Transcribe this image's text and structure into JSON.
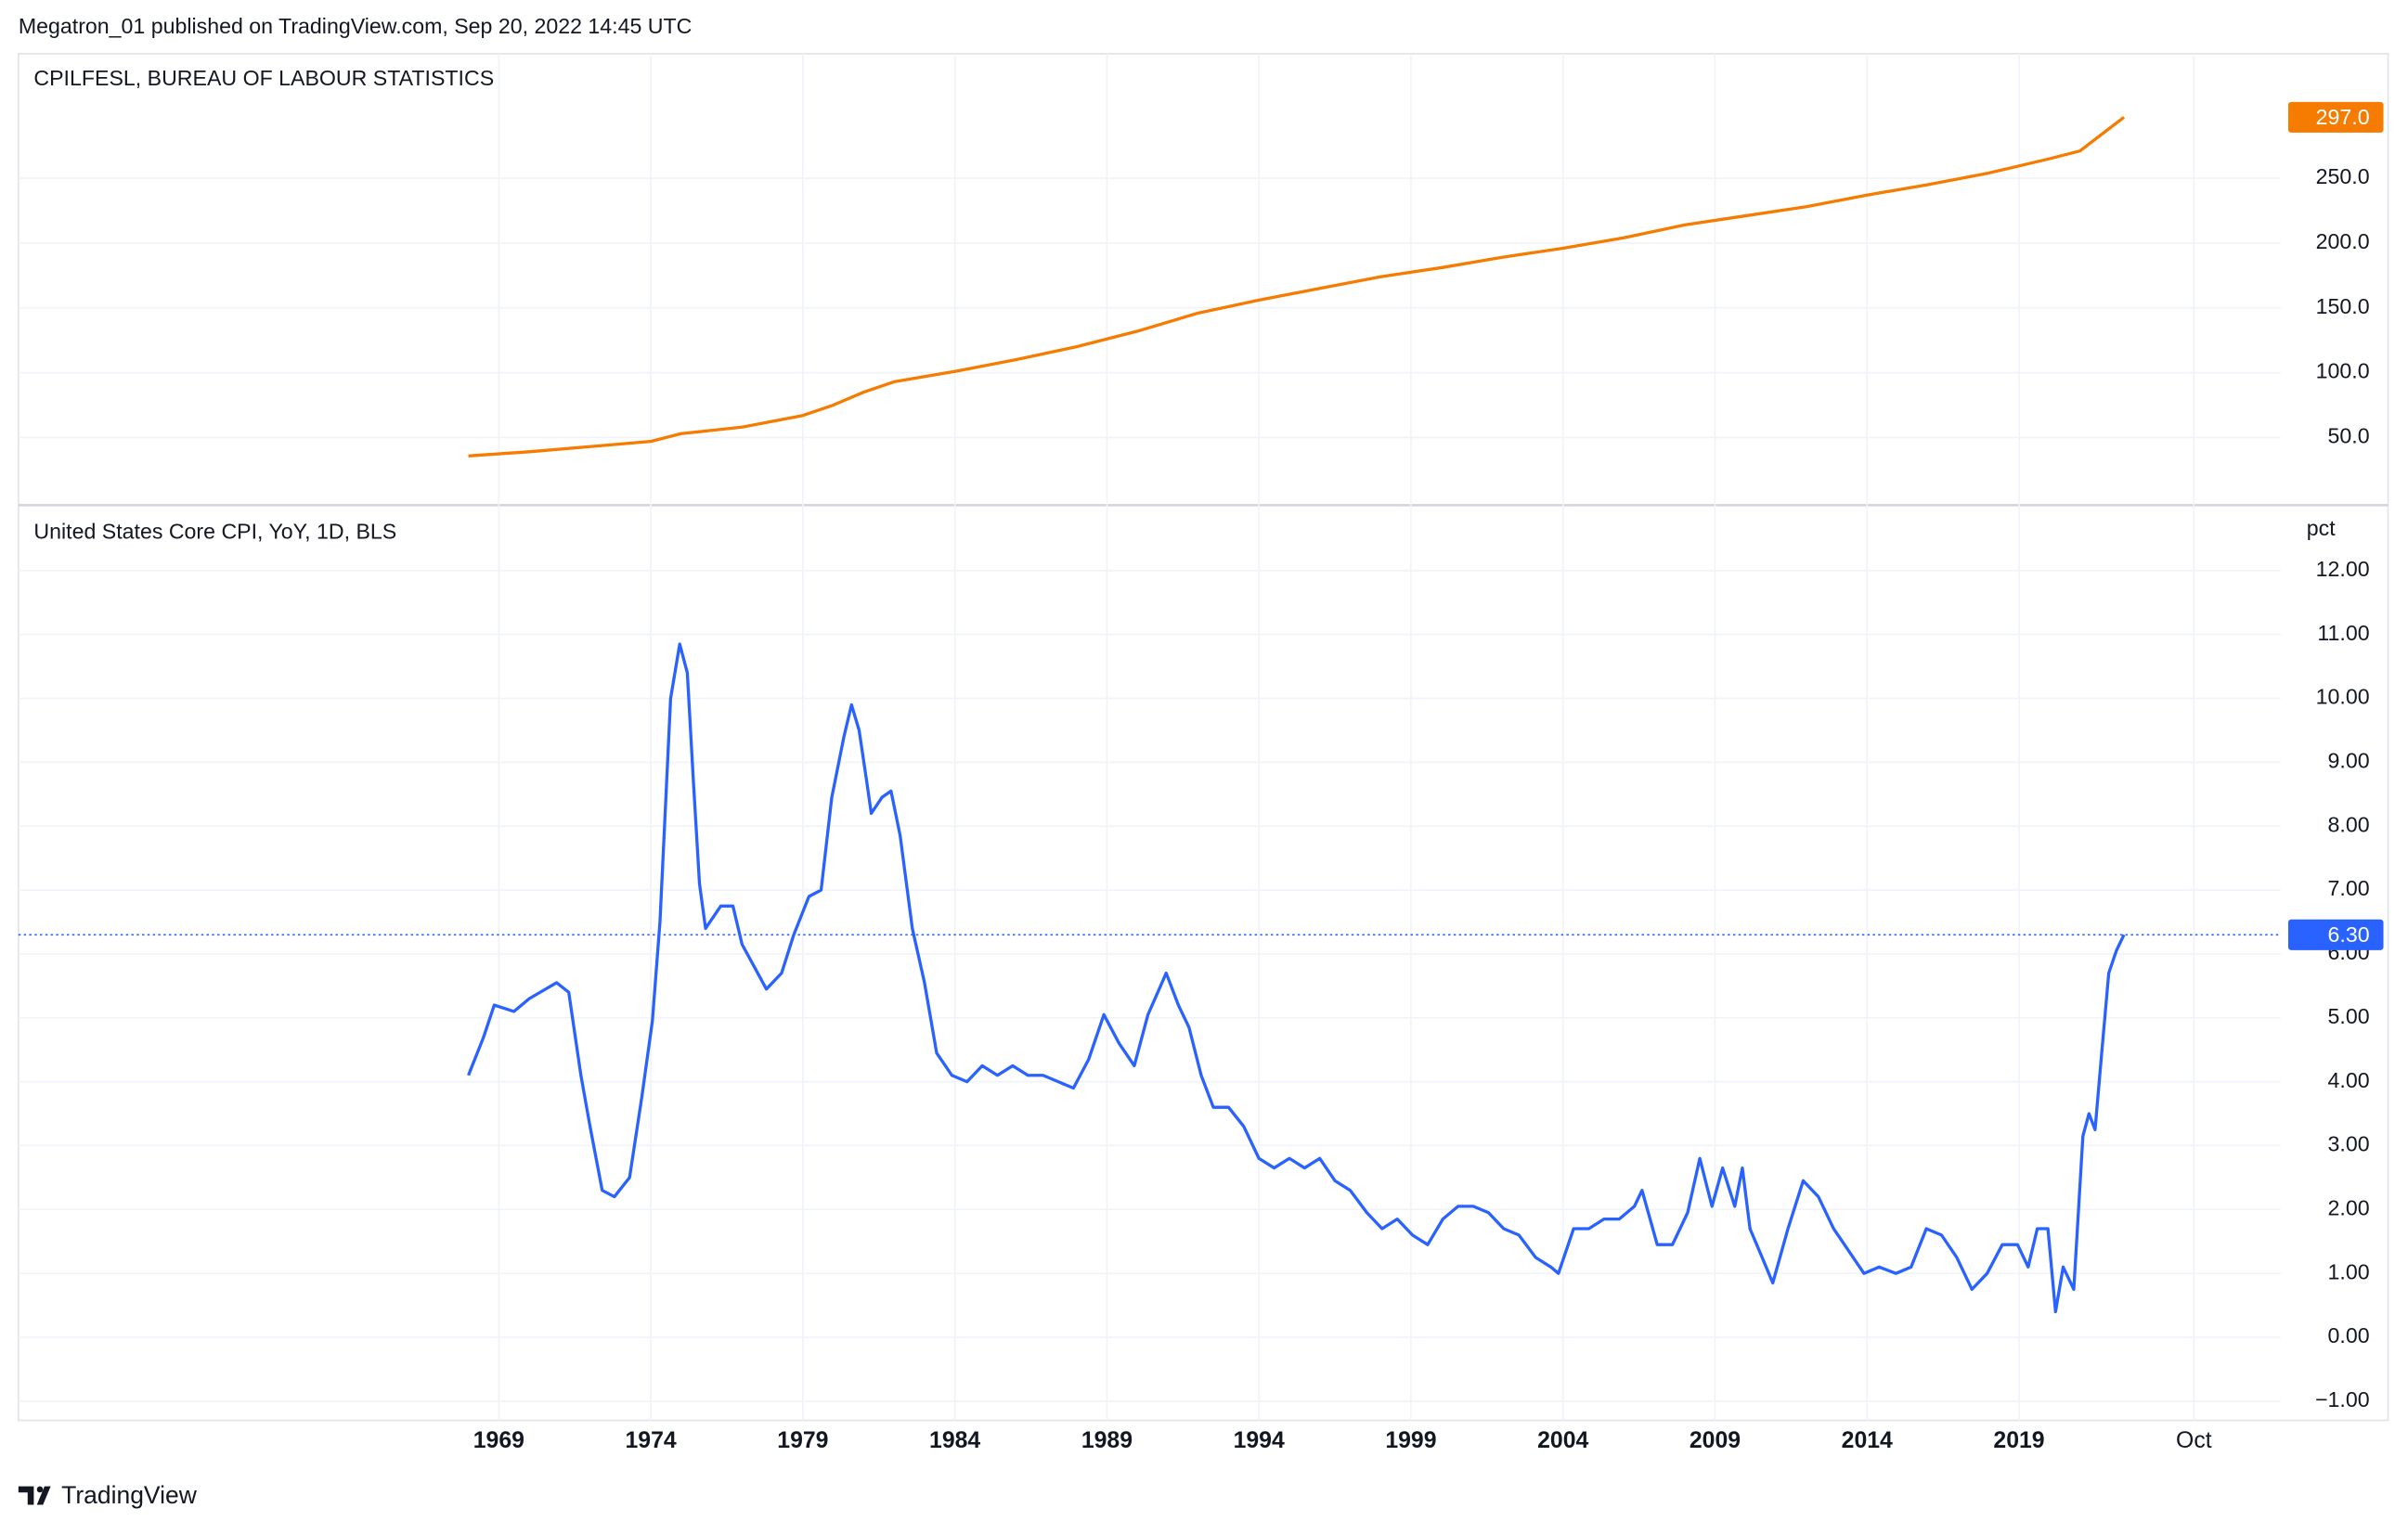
{
  "header": "Megatron_01 published on TradingView.com, Sep 20, 2022 14:45 UTC",
  "footer": "TradingView",
  "chart_data": [
    {
      "type": "line",
      "title": "CPILFESL, BUREAU OF LABOUR STATISTICS",
      "xlim": [
        1953.2,
        2027.6
      ],
      "ylim": [
        -1,
        346
      ],
      "yticks": [
        {
          "value": 50,
          "label": "50.0"
        },
        {
          "value": 100,
          "label": "100.0"
        },
        {
          "value": 150,
          "label": "150.0"
        },
        {
          "value": 200,
          "label": "200.0"
        },
        {
          "value": 250,
          "label": "250.0"
        }
      ],
      "last_value": {
        "value": 297,
        "label": "297.0"
      },
      "x": [
        1968,
        1970,
        1972,
        1974,
        1975,
        1977,
        1979,
        1980,
        1981,
        1982,
        1984,
        1986,
        1988,
        1990,
        1992,
        1994,
        1996,
        1998,
        2000,
        2002,
        2004,
        2006,
        2008,
        2010,
        2012,
        2014,
        2016,
        2018,
        2020,
        2021,
        2022.45
      ],
      "series": [
        {
          "color": "#f57c00",
          "values": [
            35.8,
            39,
            43,
            47,
            53,
            58,
            67,
            75,
            85,
            93,
            101,
            110,
            120,
            132,
            146,
            156,
            165,
            174,
            181,
            189,
            196,
            204,
            214,
            221,
            228,
            237,
            245,
            254,
            265,
            271,
            297
          ]
        }
      ]
    },
    {
      "type": "line",
      "title": "United States Core CPI, YoY, 1D, BLS",
      "y_unit": "pct",
      "xlim": [
        1953.2,
        2027.6
      ],
      "ylim": [
        -1.3,
        13.0
      ],
      "xticks": [
        1969,
        1974,
        1979,
        1984,
        1989,
        1994,
        1999,
        2004,
        2009,
        2014,
        2019,
        {
          "value": 2024.75,
          "label": "Oct"
        }
      ],
      "yticks": [
        {
          "value": -1,
          "label": "−1.00"
        },
        {
          "value": 0,
          "label": "0.00"
        },
        {
          "value": 1,
          "label": "1.00"
        },
        {
          "value": 2,
          "label": "2.00"
        },
        {
          "value": 3,
          "label": "3.00"
        },
        {
          "value": 4,
          "label": "4.00"
        },
        {
          "value": 5,
          "label": "5.00"
        },
        {
          "value": 6,
          "label": "6.00"
        },
        {
          "value": 7,
          "label": "7.00"
        },
        {
          "value": 8,
          "label": "8.00"
        },
        {
          "value": 9,
          "label": "9.00"
        },
        {
          "value": 10,
          "label": "10.00"
        },
        {
          "value": 11,
          "label": "11.00"
        },
        {
          "value": 12,
          "label": "12.00"
        }
      ],
      "last_value": {
        "value": 6.3,
        "label": "6.30"
      },
      "x": [
        1968.0,
        1968.5,
        1968.85,
        1969.5,
        1970.0,
        1970.9,
        1971.3,
        1971.7,
        1972.0,
        1972.4,
        1972.8,
        1973.3,
        1973.7,
        1974.05,
        1974.3,
        1974.65,
        1974.95,
        1975.2,
        1975.4,
        1975.6,
        1975.8,
        1976.3,
        1976.7,
        1977.0,
        1977.4,
        1977.8,
        1978.3,
        1978.7,
        1979.2,
        1979.6,
        1979.95,
        1980.35,
        1980.6,
        1980.85,
        1981.1,
        1981.25,
        1981.6,
        1981.9,
        1982.2,
        1982.6,
        1983.0,
        1983.4,
        1983.9,
        1984.4,
        1984.9,
        1985.4,
        1985.9,
        1986.4,
        1986.9,
        1987.4,
        1987.9,
        1988.4,
        1988.9,
        1989.4,
        1989.9,
        1990.35,
        1990.95,
        1991.35,
        1991.7,
        1992.1,
        1992.5,
        1993.0,
        1993.5,
        1994.0,
        1994.5,
        1995.0,
        1995.5,
        1996.0,
        1996.5,
        1997.0,
        1997.55,
        1998.05,
        1998.55,
        1999.05,
        1999.55,
        2000.05,
        2000.55,
        2001.05,
        2001.55,
        2002.05,
        2002.55,
        2003.1,
        2003.6,
        2003.85,
        2004.35,
        2004.85,
        2005.35,
        2005.85,
        2006.35,
        2006.6,
        2007.1,
        2007.6,
        2008.1,
        2008.5,
        2008.9,
        2009.25,
        2009.65,
        2009.9,
        2010.15,
        2010.55,
        2010.9,
        2011.4,
        2011.9,
        2012.4,
        2012.9,
        2013.4,
        2013.9,
        2014.4,
        2014.95,
        2015.45,
        2015.95,
        2016.45,
        2016.95,
        2017.45,
        2017.95,
        2018.45,
        2018.95,
        2019.3,
        2019.6,
        2019.95,
        2020.2,
        2020.45,
        2020.8,
        2021.1,
        2021.3,
        2021.5,
        2021.7,
        2021.95,
        2022.2,
        2022.45
      ],
      "series": [
        {
          "color": "#2962ff",
          "values": [
            4.1,
            4.7,
            5.2,
            5.1,
            5.3,
            5.55,
            5.4,
            4.1,
            3.3,
            2.3,
            2.2,
            2.5,
            3.75,
            4.95,
            6.5,
            10.0,
            10.85,
            10.4,
            8.7,
            7.1,
            6.4,
            6.75,
            6.75,
            6.15,
            5.8,
            5.45,
            5.7,
            6.3,
            6.9,
            7.0,
            8.45,
            9.4,
            9.9,
            9.5,
            8.7,
            8.2,
            8.45,
            8.55,
            7.85,
            6.4,
            5.55,
            4.45,
            4.1,
            4.0,
            4.25,
            4.1,
            4.25,
            4.1,
            4.1,
            4.0,
            3.9,
            4.35,
            5.05,
            4.6,
            4.25,
            5.05,
            5.7,
            5.2,
            4.85,
            4.1,
            3.6,
            3.6,
            3.3,
            2.8,
            2.65,
            2.8,
            2.65,
            2.8,
            2.45,
            2.3,
            1.95,
            1.7,
            1.85,
            1.6,
            1.45,
            1.85,
            2.05,
            2.05,
            1.95,
            1.7,
            1.6,
            1.25,
            1.1,
            1.0,
            1.7,
            1.7,
            1.85,
            1.85,
            2.05,
            2.3,
            1.45,
            1.45,
            1.95,
            2.8,
            2.05,
            2.65,
            2.05,
            2.65,
            1.7,
            1.25,
            0.85,
            1.7,
            2.45,
            2.2,
            1.7,
            1.35,
            1.0,
            1.1,
            1.0,
            1.1,
            1.7,
            1.6,
            1.25,
            0.75,
            1.0,
            1.45,
            1.45,
            1.1,
            1.7,
            1.7,
            0.4,
            1.1,
            0.75,
            3.15,
            3.5,
            3.25,
            4.35,
            5.7,
            6.05,
            6.3
          ]
        }
      ]
    }
  ]
}
